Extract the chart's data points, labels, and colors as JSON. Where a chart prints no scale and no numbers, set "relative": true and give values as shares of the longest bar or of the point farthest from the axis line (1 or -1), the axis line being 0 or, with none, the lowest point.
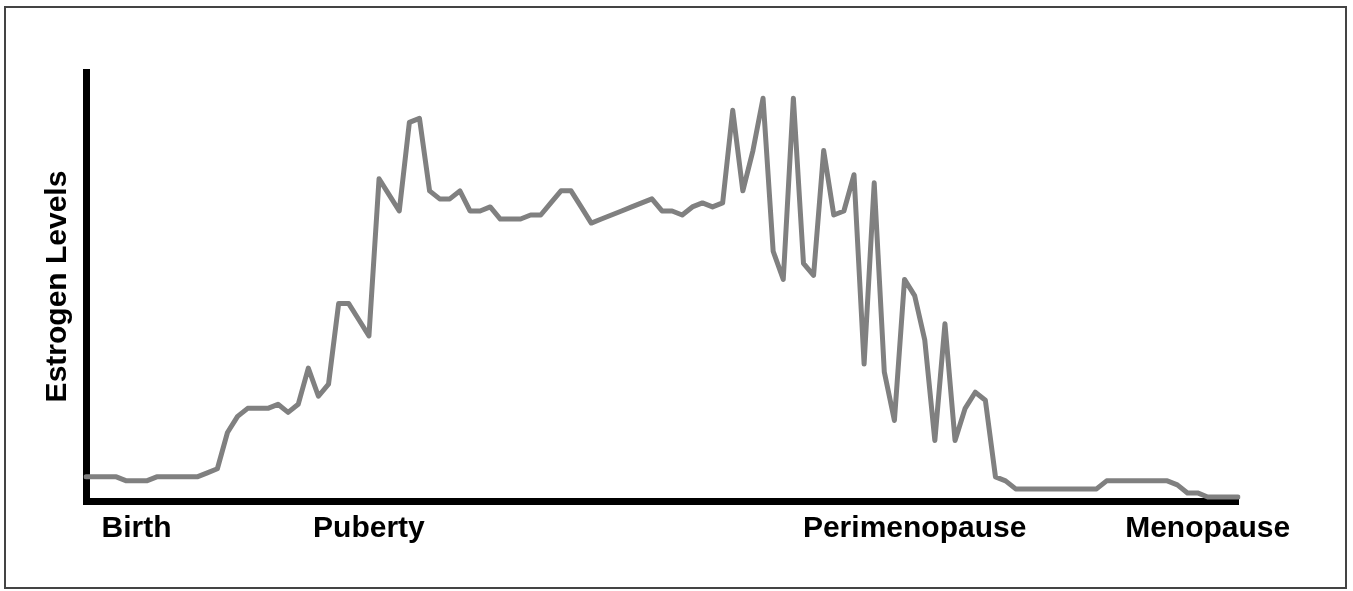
{
  "chart_data": {
    "type": "line",
    "ylabel": "Estrogen Levels",
    "relative": true,
    "categories": [
      null,
      null,
      null,
      null,
      null,
      "Birth",
      null,
      null,
      null,
      null,
      null,
      null,
      null,
      null,
      null,
      null,
      null,
      null,
      null,
      null,
      null,
      null,
      null,
      null,
      null,
      null,
      null,
      null,
      "Puberty",
      null,
      null,
      null,
      null,
      null,
      null,
      null,
      null,
      null,
      null,
      null,
      null,
      null,
      null,
      null,
      null,
      null,
      null,
      null,
      null,
      null,
      null,
      null,
      null,
      null,
      null,
      null,
      null,
      null,
      null,
      null,
      null,
      null,
      null,
      null,
      null,
      null,
      null,
      null,
      null,
      null,
      null,
      null,
      null,
      null,
      null,
      null,
      null,
      null,
      null,
      null,
      null,
      null,
      "Perimenopause",
      null,
      null,
      null,
      null,
      null,
      null,
      null,
      null,
      null,
      null,
      null,
      null,
      null,
      null,
      null,
      null,
      null,
      null,
      null,
      null,
      null,
      null,
      null,
      null,
      null,
      null,
      null,
      null,
      "Menopause",
      null,
      null,
      null
    ],
    "series": [
      {
        "color": "#808080",
        "values": [
          0.06,
          0.06,
          0.06,
          0.06,
          0.05,
          0.05,
          0.05,
          0.06,
          0.06,
          0.06,
          0.06,
          0.06,
          0.07,
          0.08,
          0.17,
          0.21,
          0.23,
          0.23,
          0.23,
          0.24,
          0.22,
          0.24,
          0.33,
          0.26,
          0.29,
          0.49,
          0.49,
          0.45,
          0.41,
          0.8,
          0.76,
          0.72,
          0.94,
          0.95,
          0.77,
          0.75,
          0.75,
          0.77,
          0.72,
          0.72,
          0.73,
          0.7,
          0.7,
          0.7,
          0.71,
          0.71,
          0.74,
          0.77,
          0.77,
          0.73,
          0.69,
          0.7,
          0.71,
          0.72,
          0.73,
          0.74,
          0.75,
          0.72,
          0.72,
          0.71,
          0.73,
          0.74,
          0.73,
          0.74,
          0.97,
          0.77,
          0.87,
          1,
          0.62,
          0.55,
          1,
          0.59,
          0.56,
          0.87,
          0.71,
          0.72,
          0.81,
          0.34,
          0.79,
          0.32,
          0.2,
          0.55,
          0.51,
          0.4,
          0.15,
          0.44,
          0.15,
          0.23,
          0.27,
          0.25,
          0.06,
          0.05,
          0.03,
          0.03,
          0.03,
          0.03,
          0.03,
          0.03,
          0.03,
          0.03,
          0.03,
          0.05,
          0.05,
          0.05,
          0.05,
          0.05,
          0.05,
          0.05,
          0.04,
          0.02,
          0.02,
          0.01,
          0.01,
          0.01,
          0.01
        ]
      }
    ]
  }
}
